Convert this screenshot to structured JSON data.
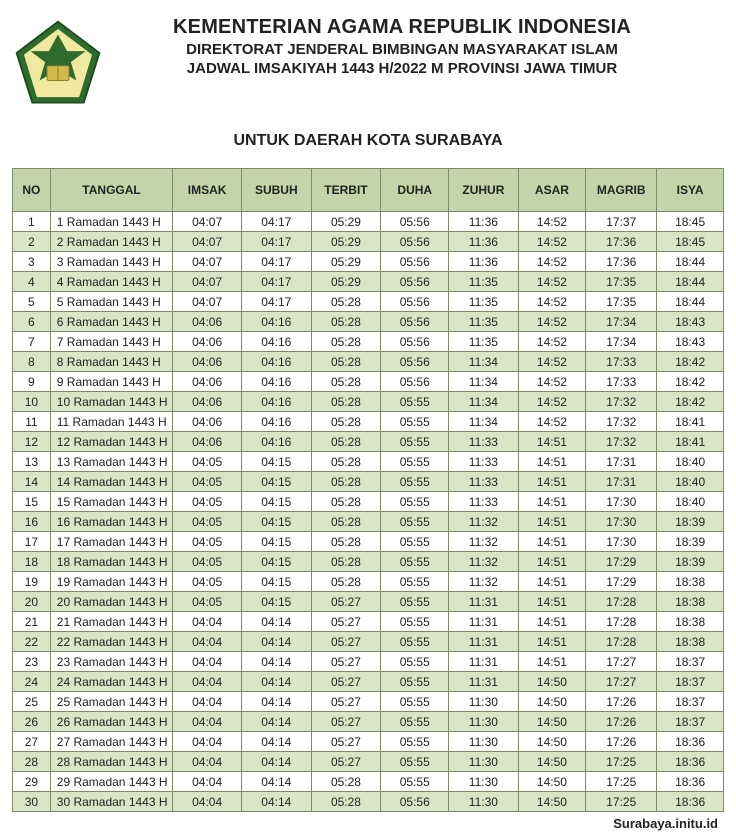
{
  "header": {
    "title": "KEMENTERIAN AGAMA REPUBLIK INDONESIA",
    "subtitle1": "DIREKTORAT JENDERAL BIMBINGAN MASYARAKAT ISLAM",
    "subtitle2": "JADWAL IMSAKIYAH 1443 H/2022 M PROVINSI JAWA TIMUR",
    "region": "UNTUK DAERAH KOTA SURABAYA"
  },
  "table": {
    "columns": [
      "NO",
      "TANGGAL",
      "IMSAK",
      "SUBUH",
      "TERBIT",
      "DUHA",
      "ZUHUR",
      "ASAR",
      "MAGRIB",
      "ISYA"
    ],
    "rows": [
      [
        "1",
        "1 Ramadan 1443 H",
        "04:07",
        "04:17",
        "05:29",
        "05:56",
        "11:36",
        "14:52",
        "17:37",
        "18:45"
      ],
      [
        "2",
        "2 Ramadan 1443 H",
        "04:07",
        "04:17",
        "05:29",
        "05:56",
        "11:36",
        "14:52",
        "17:36",
        "18:45"
      ],
      [
        "3",
        "3 Ramadan 1443 H",
        "04:07",
        "04:17",
        "05:29",
        "05:56",
        "11:36",
        "14:52",
        "17:36",
        "18:44"
      ],
      [
        "4",
        "4 Ramadan 1443 H",
        "04:07",
        "04:17",
        "05:29",
        "05:56",
        "11:35",
        "14:52",
        "17:35",
        "18:44"
      ],
      [
        "5",
        "5 Ramadan 1443 H",
        "04:07",
        "04:17",
        "05:28",
        "05:56",
        "11:35",
        "14:52",
        "17:35",
        "18:44"
      ],
      [
        "6",
        "6 Ramadan 1443 H",
        "04:06",
        "04:16",
        "05:28",
        "05:56",
        "11:35",
        "14:52",
        "17:34",
        "18:43"
      ],
      [
        "7",
        "7 Ramadan 1443 H",
        "04:06",
        "04:16",
        "05:28",
        "05:56",
        "11:35",
        "14:52",
        "17:34",
        "18:43"
      ],
      [
        "8",
        "8 Ramadan 1443 H",
        "04:06",
        "04:16",
        "05:28",
        "05:56",
        "11:34",
        "14:52",
        "17:33",
        "18:42"
      ],
      [
        "9",
        "9 Ramadan 1443 H",
        "04:06",
        "04:16",
        "05:28",
        "05:56",
        "11:34",
        "14:52",
        "17:33",
        "18:42"
      ],
      [
        "10",
        "10 Ramadan 1443 H",
        "04:06",
        "04:16",
        "05:28",
        "05:55",
        "11:34",
        "14:52",
        "17:32",
        "18:42"
      ],
      [
        "11",
        "11 Ramadan 1443 H",
        "04:06",
        "04:16",
        "05:28",
        "05:55",
        "11:34",
        "14:52",
        "17:32",
        "18:41"
      ],
      [
        "12",
        "12 Ramadan 1443 H",
        "04:06",
        "04:16",
        "05:28",
        "05:55",
        "11:33",
        "14:51",
        "17:32",
        "18:41"
      ],
      [
        "13",
        "13 Ramadan 1443 H",
        "04:05",
        "04:15",
        "05:28",
        "05:55",
        "11:33",
        "14:51",
        "17:31",
        "18:40"
      ],
      [
        "14",
        "14 Ramadan 1443 H",
        "04:05",
        "04:15",
        "05:28",
        "05:55",
        "11:33",
        "14:51",
        "17:31",
        "18:40"
      ],
      [
        "15",
        "15 Ramadan 1443 H",
        "04:05",
        "04:15",
        "05:28",
        "05:55",
        "11:33",
        "14:51",
        "17:30",
        "18:40"
      ],
      [
        "16",
        "16 Ramadan 1443 H",
        "04:05",
        "04:15",
        "05:28",
        "05:55",
        "11:32",
        "14:51",
        "17:30",
        "18:39"
      ],
      [
        "17",
        "17 Ramadan 1443 H",
        "04:05",
        "04:15",
        "05:28",
        "05:55",
        "11:32",
        "14:51",
        "17:30",
        "18:39"
      ],
      [
        "18",
        "18 Ramadan 1443 H",
        "04:05",
        "04:15",
        "05:28",
        "05:55",
        "11:32",
        "14:51",
        "17:29",
        "18:39"
      ],
      [
        "19",
        "19 Ramadan 1443 H",
        "04:05",
        "04:15",
        "05:28",
        "05:55",
        "11:32",
        "14:51",
        "17:29",
        "18:38"
      ],
      [
        "20",
        "20 Ramadan 1443 H",
        "04:05",
        "04:15",
        "05:27",
        "05:55",
        "11:31",
        "14:51",
        "17:28",
        "18:38"
      ],
      [
        "21",
        "21 Ramadan 1443 H",
        "04:04",
        "04:14",
        "05:27",
        "05:55",
        "11:31",
        "14:51",
        "17:28",
        "18:38"
      ],
      [
        "22",
        "22 Ramadan 1443 H",
        "04:04",
        "04:14",
        "05:27",
        "05:55",
        "11:31",
        "14:51",
        "17:28",
        "18:38"
      ],
      [
        "23",
        "23 Ramadan 1443 H",
        "04:04",
        "04:14",
        "05:27",
        "05:55",
        "11:31",
        "14:51",
        "17:27",
        "18:37"
      ],
      [
        "24",
        "24 Ramadan 1443 H",
        "04:04",
        "04:14",
        "05:27",
        "05:55",
        "11:31",
        "14:50",
        "17:27",
        "18:37"
      ],
      [
        "25",
        "25 Ramadan 1443 H",
        "04:04",
        "04:14",
        "05:27",
        "05:55",
        "11:30",
        "14:50",
        "17:26",
        "18:37"
      ],
      [
        "26",
        "26 Ramadan 1443 H",
        "04:04",
        "04:14",
        "05:27",
        "05:55",
        "11:30",
        "14:50",
        "17:26",
        "18:37"
      ],
      [
        "27",
        "27 Ramadan 1443 H",
        "04:04",
        "04:14",
        "05:27",
        "05:55",
        "11:30",
        "14:50",
        "17:26",
        "18:36"
      ],
      [
        "28",
        "28 Ramadan 1443 H",
        "04:04",
        "04:14",
        "05:27",
        "05:55",
        "11:30",
        "14:50",
        "17:25",
        "18:36"
      ],
      [
        "29",
        "29 Ramadan 1443 H",
        "04:04",
        "04:14",
        "05:28",
        "05:55",
        "11:30",
        "14:50",
        "17:25",
        "18:36"
      ],
      [
        "30",
        "30 Ramadan 1443 H",
        "04:04",
        "04:14",
        "05:28",
        "05:56",
        "11:30",
        "14:50",
        "17:25",
        "18:36"
      ]
    ],
    "header_bg": "#c3d5a8",
    "row_even_bg": "#d9e5c6",
    "row_odd_bg": "#ffffff",
    "border_color": "#7c8a6a"
  },
  "footer": "Surabaya.initu.id",
  "logo": {
    "name": "kemenag-logo",
    "outer_pent_color": "#2e6c2e",
    "inner_pent_color": "#f2e9a0",
    "accent_color": "#d4b94a",
    "star_color": "#2e6c2e"
  }
}
